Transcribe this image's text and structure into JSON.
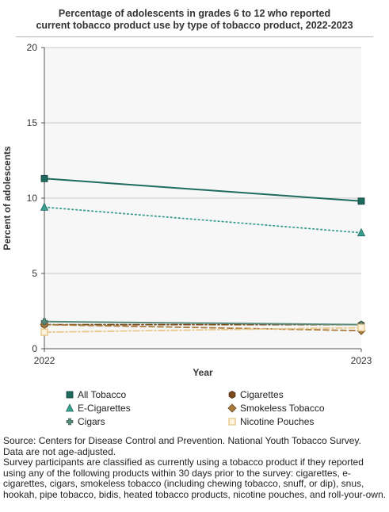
{
  "chart_data": {
    "type": "line",
    "title_lines": [
      "Percentage of adolescents in grades 6 to 12 who reported",
      "current tobacco product use by type of tobacco product, 2022-2023"
    ],
    "xlabel": "Year",
    "ylabel": "Percent of adolescents",
    "x": [
      "2022",
      "2023"
    ],
    "ylim": [
      0,
      20
    ],
    "yticks": [
      0,
      5,
      10,
      15,
      20
    ],
    "grid": true,
    "legend_position": "bottom",
    "series": [
      {
        "name": "All Tobacco",
        "values": [
          11.3,
          9.8
        ],
        "color": "#1d6b5e",
        "marker": "square",
        "line": "solid"
      },
      {
        "name": "Cigarettes",
        "values": [
          1.6,
          1.6
        ],
        "color": "#7a4a1c",
        "marker": "hexagon",
        "line": "dashdot"
      },
      {
        "name": "E-Cigarettes",
        "values": [
          9.4,
          7.7
        ],
        "color": "#3a9e8f",
        "marker": "triangle",
        "line": "dotted"
      },
      {
        "name": "Smokeless Tobacco",
        "values": [
          1.6,
          1.2
        ],
        "color": "#a87a3c",
        "marker": "diamond",
        "line": "dashed"
      },
      {
        "name": "Cigars",
        "values": [
          1.8,
          1.6
        ],
        "color": "#5a8a7a",
        "marker": "cross",
        "line": "solid"
      },
      {
        "name": "Nicotine Pouches",
        "values": [
          1.1,
          1.4
        ],
        "color": "#e8c88a",
        "marker": "square-open",
        "line": "dashdot"
      }
    ]
  },
  "footnotes": {
    "source": "Source: Centers for Disease Control and Prevention. National Youth Tobacco Survey.",
    "note1": "Data are not age-adjusted.",
    "note2": "Survey participants are classified as currently using a tobacco product if they reported using any of the following products within 30 days prior to the survey: cigarettes, e-cigarettes, cigars, smokeless tobacco (including chewing tobacco, snuff, or dip), snus, hookah, pipe tobacco, bidis, heated tobacco products, nicotine pouches, and roll-your-own."
  }
}
